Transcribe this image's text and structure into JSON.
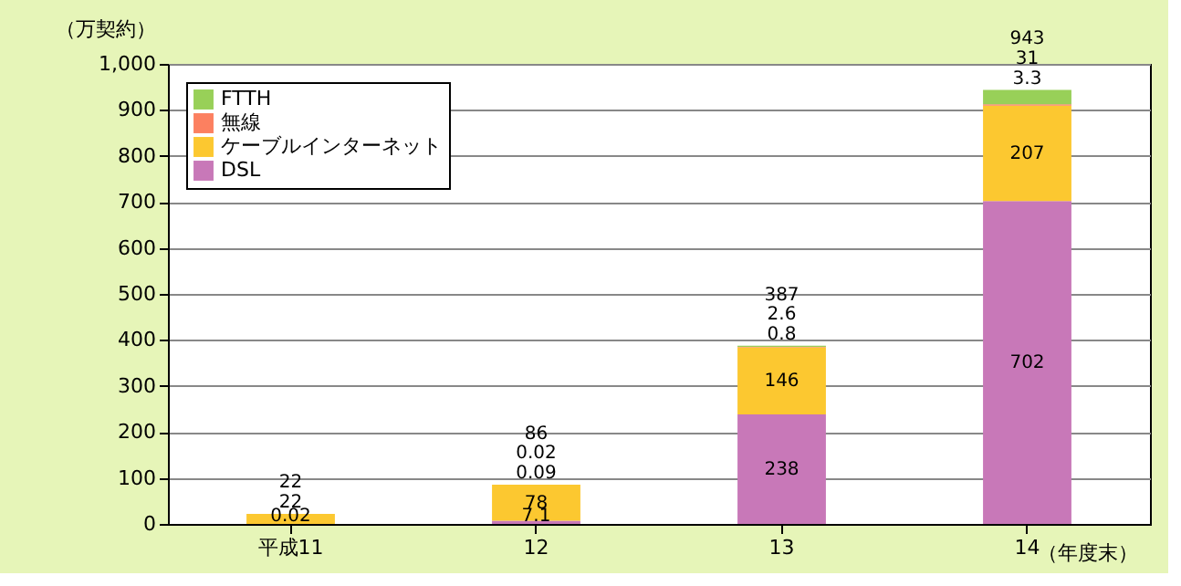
{
  "chart_data": {
    "type": "bar",
    "stacked": true,
    "categories": [
      "平成11",
      "12",
      "13",
      "14"
    ],
    "xlabel": "（年度末）",
    "ylabel": "（万契約）",
    "ylim": [
      0,
      1000
    ],
    "yticks": [
      0,
      100,
      200,
      300,
      400,
      500,
      600,
      700,
      800,
      900,
      {
        "value": 1000,
        "label": "1,000"
      }
    ],
    "grid": "y",
    "legend": "top left",
    "data_labels": true,
    "series": [
      {
        "name": "DSL",
        "color": "#c878b8",
        "values": [
          0.02,
          7.1,
          238,
          702
        ]
      },
      {
        "name": "ケーブルインターネット",
        "color": "#fcc830",
        "values": [
          22,
          78,
          146,
          207
        ]
      },
      {
        "name": "無線",
        "color": "#fc8060",
        "values": [
          null,
          0.09,
          0.8,
          3.3
        ]
      },
      {
        "name": "FTTH",
        "color": "#98d058",
        "values": [
          null,
          0.02,
          2.6,
          31
        ]
      }
    ],
    "totals": [
      "22",
      "86",
      "387",
      "943"
    ]
  }
}
